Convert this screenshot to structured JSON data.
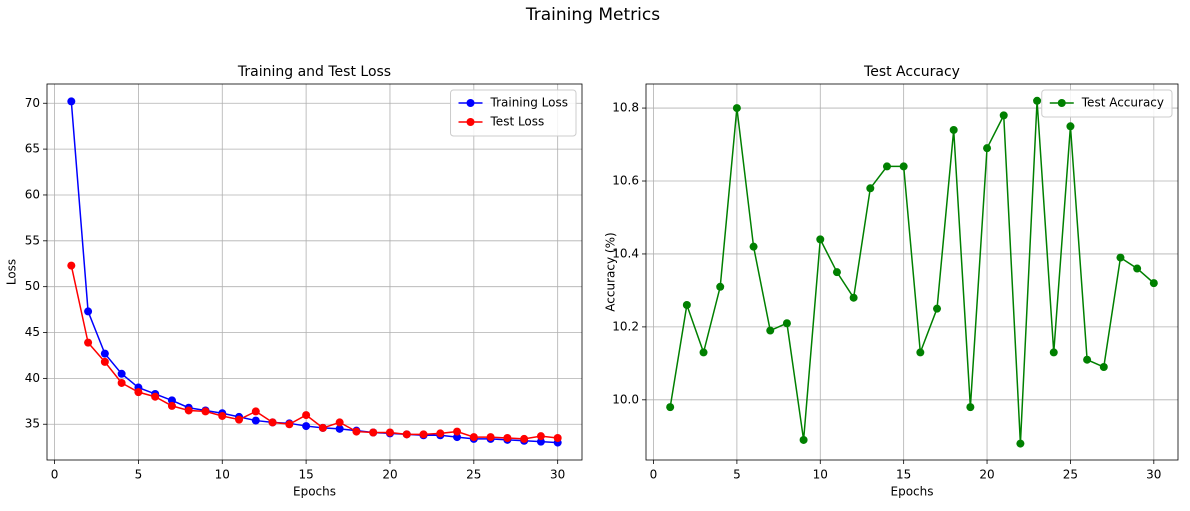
{
  "title": "Training Metrics",
  "chart_data": [
    {
      "type": "line",
      "title": "Training and Test Loss",
      "xlabel": "Epochs",
      "ylabel": "Loss",
      "x": [
        1,
        2,
        3,
        4,
        5,
        6,
        7,
        8,
        9,
        10,
        11,
        12,
        13,
        14,
        15,
        16,
        17,
        18,
        19,
        20,
        21,
        22,
        23,
        24,
        25,
        26,
        27,
        28,
        29,
        30
      ],
      "series": [
        {
          "name": "Training Loss",
          "color": "#0000ff",
          "values": [
            70.2,
            47.3,
            42.7,
            40.5,
            39.0,
            38.3,
            37.6,
            36.8,
            36.5,
            36.2,
            35.8,
            35.4,
            35.2,
            35.1,
            34.8,
            34.6,
            34.5,
            34.3,
            34.1,
            34.0,
            33.9,
            33.8,
            33.8,
            33.6,
            33.4,
            33.4,
            33.3,
            33.2,
            33.1,
            33.0
          ]
        },
        {
          "name": "Test Loss",
          "color": "#ff0000",
          "values": [
            52.3,
            43.9,
            41.8,
            39.5,
            38.5,
            38.0,
            37.0,
            36.5,
            36.4,
            35.9,
            35.5,
            36.4,
            35.2,
            35.0,
            36.0,
            34.6,
            35.2,
            34.2,
            34.1,
            34.1,
            33.9,
            33.9,
            34.0,
            34.2,
            33.6,
            33.6,
            33.5,
            33.4,
            33.7,
            33.5
          ]
        }
      ],
      "xlim": [
        -0.45,
        31.45
      ],
      "ylim": [
        31.1,
        72.1
      ],
      "xticks": [
        0,
        5,
        10,
        15,
        20,
        25,
        30
      ],
      "yticks": [
        35,
        40,
        45,
        50,
        55,
        60,
        65,
        70
      ],
      "grid": true,
      "legend": "upper right"
    },
    {
      "type": "line",
      "title": "Test Accuracy",
      "xlabel": "Epochs",
      "ylabel": "Accuracy (%)",
      "x": [
        1,
        2,
        3,
        4,
        5,
        6,
        7,
        8,
        9,
        10,
        11,
        12,
        13,
        14,
        15,
        16,
        17,
        18,
        19,
        20,
        21,
        22,
        23,
        24,
        25,
        26,
        27,
        28,
        29,
        30
      ],
      "series": [
        {
          "name": "Test Accuracy",
          "color": "#008000",
          "values": [
            9.98,
            10.26,
            10.13,
            10.31,
            10.8,
            10.42,
            10.19,
            10.21,
            9.89,
            10.44,
            10.35,
            10.28,
            10.58,
            10.64,
            10.64,
            10.13,
            10.25,
            10.74,
            9.98,
            10.69,
            10.78,
            9.88,
            10.82,
            10.13,
            10.75,
            10.11,
            10.09,
            10.39,
            10.36,
            10.32
          ]
        }
      ],
      "xlim": [
        -0.45,
        31.45
      ],
      "ylim": [
        9.835,
        10.866
      ],
      "xticks": [
        0,
        5,
        10,
        15,
        20,
        25,
        30
      ],
      "yticks": [
        {
          "value": 10,
          "label": "10.0"
        },
        10.2,
        10.4,
        10.6,
        10.8
      ],
      "grid": true,
      "legend": "upper right"
    }
  ]
}
